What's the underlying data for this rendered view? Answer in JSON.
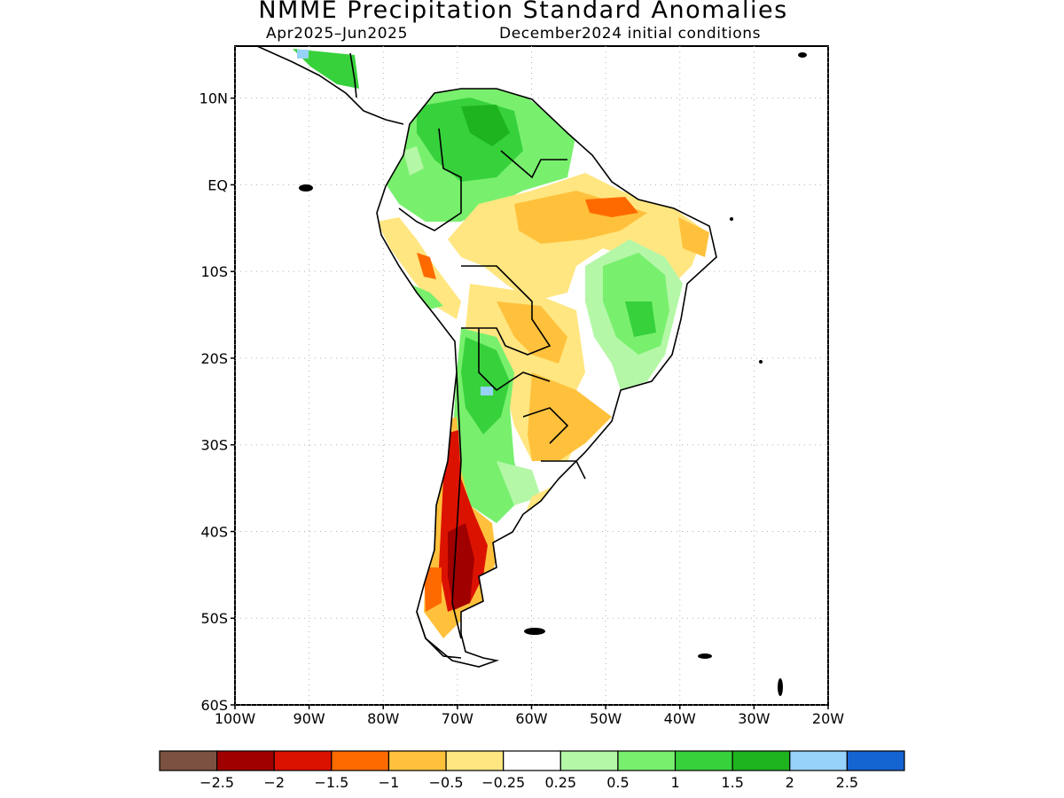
{
  "title": "NMME Precipitation Standard Anomalies",
  "subtitle_left": "Apr2025–Jun2025",
  "subtitle_right": "December2024 initial conditions",
  "map": {
    "lat_labels": [
      "10N",
      "EQ",
      "10S",
      "20S",
      "30S",
      "40S",
      "50S",
      "60S"
    ],
    "lon_labels": [
      "100W",
      "90W",
      "80W",
      "70W",
      "60W",
      "50W",
      "40W",
      "30W",
      "20W"
    ],
    "lat_values": [
      10,
      0,
      -10,
      -20,
      -30,
      -40,
      -50,
      -60
    ],
    "lon_values": [
      -100,
      -90,
      -80,
      -70,
      -60,
      -50,
      -40,
      -30,
      -20
    ],
    "lat_range": [
      -60,
      16
    ],
    "lon_range": [
      -100,
      -20
    ]
  },
  "legend": {
    "labels": [
      "−2.5",
      "−2",
      "−1.5",
      "−1",
      "−0.5",
      "−0.25",
      "0.25",
      "0.5",
      "1",
      "1.5",
      "2",
      "2.5"
    ],
    "colors": [
      "#7b5141",
      "#a10000",
      "#dc1200",
      "#ff6a00",
      "#ffc13c",
      "#ffe680",
      "#ffffff",
      "#b4f7a7",
      "#78f06e",
      "#37d13c",
      "#1eb41e",
      "#96d2fa",
      "#1464d2"
    ]
  },
  "colors": {
    "dry_strong": "#a10000",
    "dry": "#dc1200",
    "dry_moderate": "#ff6a00",
    "dry_weak": "#ffc13c",
    "dry_slight": "#ffe680",
    "wet_slight": "#b4f7a7",
    "wet_weak": "#78f06e",
    "wet_moderate": "#37d13c",
    "wet": "#1eb41e",
    "wet_strong": "#96d2fa"
  }
}
